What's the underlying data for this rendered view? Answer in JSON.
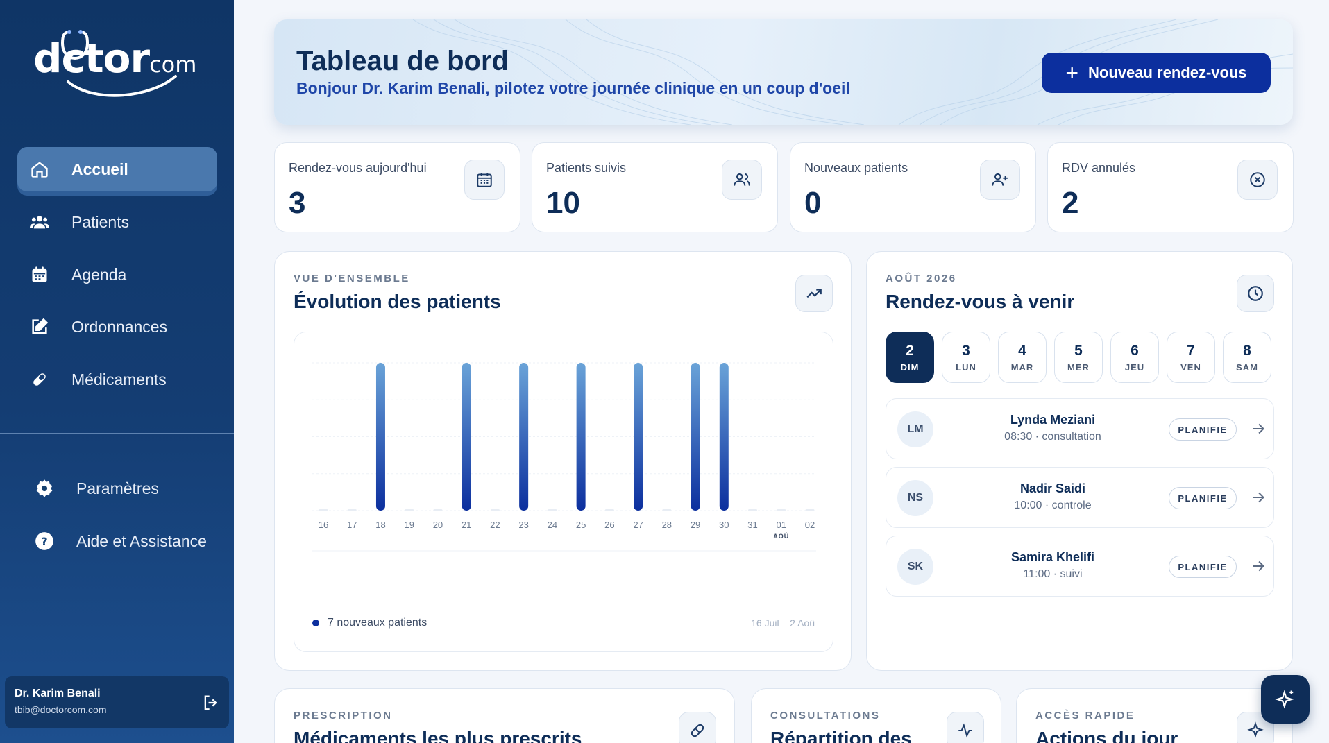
{
  "brand": {
    "logo_main": "dctor",
    "logo_small": "com"
  },
  "sidebar": {
    "items": [
      {
        "label": "Accueil",
        "icon": "home-icon"
      },
      {
        "label": "Patients",
        "icon": "users-icon"
      },
      {
        "label": "Agenda",
        "icon": "calendar-icon"
      },
      {
        "label": "Ordonnances",
        "icon": "edit-icon"
      },
      {
        "label": "Médicaments",
        "icon": "pill-icon"
      }
    ],
    "bottom_items": [
      {
        "label": "Paramètres",
        "icon": "gear-icon"
      },
      {
        "label": "Aide et Assistance",
        "icon": "help-icon"
      }
    ]
  },
  "user": {
    "name": "Dr. Karim Benali",
    "email": "tbib@doctorcom.com"
  },
  "header": {
    "title": "Tableau de bord",
    "subtitle": "Bonjour Dr. Karim Benali, pilotez votre journée clinique en un coup d'oeil",
    "new_button": "Nouveau rendez-vous"
  },
  "stats": [
    {
      "label": "Rendez-vous aujourd'hui",
      "value": "3",
      "icon": "calendar-icon"
    },
    {
      "label": "Patients suivis",
      "value": "10",
      "icon": "users-icon"
    },
    {
      "label": "Nouveaux patients",
      "value": "0",
      "icon": "user-plus-icon"
    },
    {
      "label": "RDV annulés",
      "value": "2",
      "icon": "x-circle-icon"
    }
  ],
  "evolution": {
    "eyebrow": "VUE D'ENSEMBLE",
    "title": "Évolution des patients",
    "legend": "7 nouveaux patients",
    "range": "16 Juil – 2 Aoû",
    "month_marker": "AOÛ"
  },
  "chart_data": {
    "type": "bar",
    "categories": [
      "16",
      "17",
      "18",
      "19",
      "20",
      "21",
      "22",
      "23",
      "24",
      "25",
      "26",
      "27",
      "28",
      "29",
      "30",
      "31",
      "01",
      "02"
    ],
    "series": [
      {
        "name": "7 nouveaux patients",
        "values": [
          0,
          0,
          1,
          0,
          0,
          1,
          0,
          1,
          0,
          1,
          0,
          1,
          0,
          1,
          1,
          0,
          0,
          0
        ]
      }
    ],
    "ylim": [
      0,
      1
    ],
    "grid": true,
    "legend": "bottom-left",
    "colors": {
      "bar_top": "#6aa3d8",
      "bar_bottom": "#0c2f9e"
    }
  },
  "appointments": {
    "eyebrow": "AOÛT 2026",
    "title": "Rendez-vous à venir",
    "days": [
      {
        "num": "2",
        "day": "DIM",
        "active": true
      },
      {
        "num": "3",
        "day": "LUN"
      },
      {
        "num": "4",
        "day": "MAR"
      },
      {
        "num": "5",
        "day": "MER"
      },
      {
        "num": "6",
        "day": "JEU"
      },
      {
        "num": "7",
        "day": "VEN"
      },
      {
        "num": "8",
        "day": "SAM"
      }
    ],
    "list": [
      {
        "initials": "LM",
        "name": "Lynda Meziani",
        "time": "08:30 · consultation",
        "status": "PLANIFIE"
      },
      {
        "initials": "NS",
        "name": "Nadir Saidi",
        "time": "10:00 · controle",
        "status": "PLANIFIE"
      },
      {
        "initials": "SK",
        "name": "Samira Khelifi",
        "time": "11:00 · suivi",
        "status": "PLANIFIE"
      }
    ]
  },
  "bottom_panels": [
    {
      "eyebrow": "PRESCRIPTION",
      "title": "Médicaments les plus prescrits"
    },
    {
      "eyebrow": "CONSULTATIONS",
      "title": "Répartition des"
    },
    {
      "eyebrow": "ACCÈS RAPIDE",
      "title": "Actions du jour"
    }
  ],
  "colors": {
    "sidebar": "#0f3566",
    "accent": "#0c2f9e",
    "title": "#0e2d58"
  }
}
